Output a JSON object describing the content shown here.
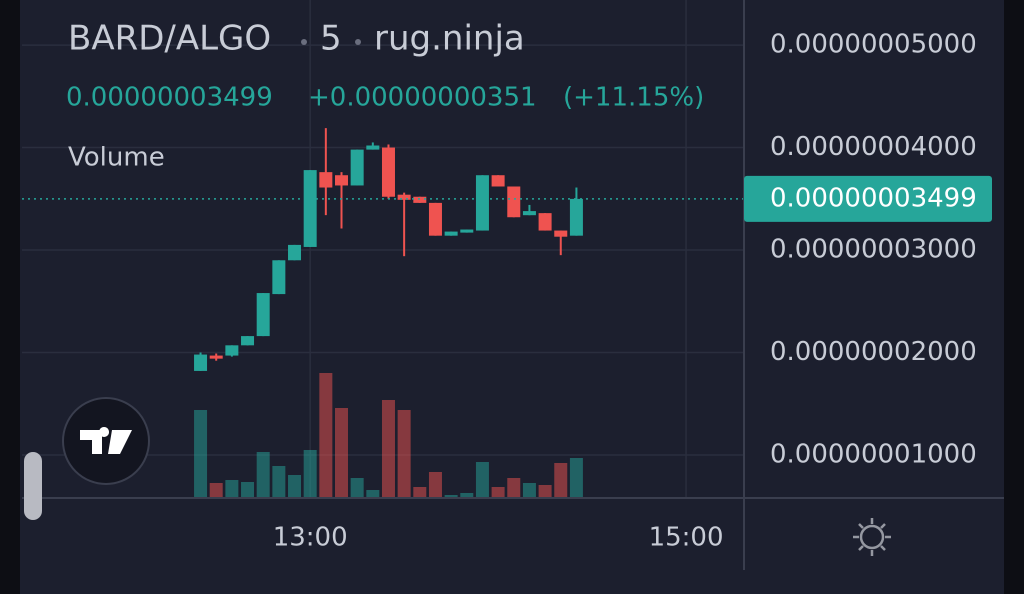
{
  "header": {
    "symbol": "BARD/ALGO",
    "interval": "5",
    "exchange": "rug.ninja",
    "price": "0.00000003499",
    "change": "+0.00000000351",
    "change_pct": "(+11.15%)",
    "volume_label": "Volume"
  },
  "chart_data": {
    "type": "candlestick",
    "x": [
      745,
      750,
      755,
      760,
      765,
      770,
      775,
      780,
      785,
      790,
      795,
      800,
      805,
      810,
      815,
      820,
      825,
      830,
      835,
      840,
      845,
      850,
      855,
      860,
      865
    ],
    "open": [
      1.82e-08,
      1.97e-08,
      1.97e-08,
      2.07e-08,
      2.16e-08,
      2.57e-08,
      2.9e-08,
      3.03e-08,
      3.76e-08,
      3.73e-08,
      3.63e-08,
      3.98e-08,
      4e-08,
      3.54e-08,
      3.52e-08,
      3.46e-08,
      3.14e-08,
      3.17e-08,
      3.19e-08,
      3.73e-08,
      3.62e-08,
      3.34e-08,
      3.36e-08,
      3.19e-08,
      3.14e-08
    ],
    "high": [
      2e-08,
      1.99e-08,
      2.07e-08,
      2.16e-08,
      2.58e-08,
      2.9e-08,
      3.05e-08,
      3.78e-08,
      4.19e-08,
      3.76e-08,
      3.98e-08,
      4.05e-08,
      4.03e-08,
      3.56e-08,
      3.52e-08,
      3.46e-08,
      3.18e-08,
      3.2e-08,
      3.73e-08,
      3.73e-08,
      3.62e-08,
      3.44e-08,
      3.36e-08,
      3.19e-08,
      3.61e-08
    ],
    "low": [
      1.82e-08,
      1.92e-08,
      1.96e-08,
      2.07e-08,
      2.16e-08,
      2.57e-08,
      2.9e-08,
      3.03e-08,
      3.34e-08,
      3.21e-08,
      3.63e-08,
      3.98e-08,
      3.5e-08,
      2.94e-08,
      3.46e-08,
      3.14e-08,
      3.14e-08,
      3.17e-08,
      3.19e-08,
      3.62e-08,
      3.32e-08,
      3.34e-08,
      3.19e-08,
      2.95e-08,
      3.14e-08
    ],
    "close": [
      1.98e-08,
      1.94e-08,
      2.07e-08,
      2.16e-08,
      2.58e-08,
      2.9e-08,
      3.05e-08,
      3.78e-08,
      3.61e-08,
      3.63e-08,
      3.98e-08,
      4.02e-08,
      3.52e-08,
      3.49e-08,
      3.46e-08,
      3.14e-08,
      3.18e-08,
      3.2e-08,
      3.73e-08,
      3.62e-08,
      3.32e-08,
      3.38e-08,
      3.19e-08,
      3.13e-08,
      3.499e-08
    ],
    "volume": [
      88,
      15,
      18,
      16,
      46,
      32,
      23,
      48,
      125,
      90,
      20,
      8,
      98,
      88,
      11,
      26,
      3,
      5,
      36,
      11,
      20,
      15,
      13,
      35,
      40
    ],
    "up_color": "#26a69a",
    "down_color": "#ef5350",
    "xlim": [
      688,
      918.5
    ],
    "xticks": [
      {
        "value": 780,
        "label": "13:00"
      },
      {
        "value": 900,
        "label": "15:00"
      }
    ],
    "ylim": [
      5.8e-09,
      5.44e-08
    ],
    "yticks": [
      {
        "value": 1e-08,
        "label": "0.00000001000"
      },
      {
        "value": 2e-08,
        "label": "0.00000002000"
      },
      {
        "value": 3e-08,
        "label": "0.00000003000"
      },
      {
        "value": 4e-08,
        "label": "0.00000004000"
      },
      {
        "value": 5e-08,
        "label": "0.00000005000"
      }
    ],
    "last_price": {
      "value": 3.499e-08,
      "label": "0.00000003499"
    },
    "grid": true
  }
}
